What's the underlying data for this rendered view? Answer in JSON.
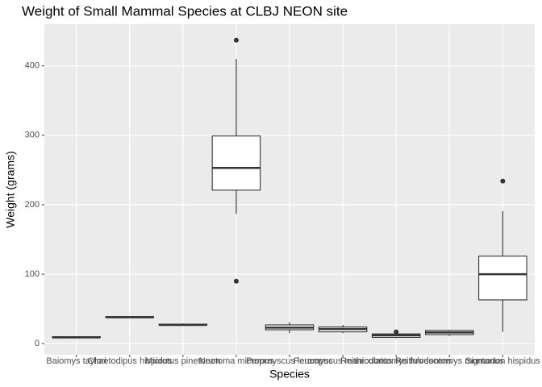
{
  "chart_data": {
    "type": "box",
    "title": "Weight of Small Mammal Species at CLBJ NEON site",
    "x_label": "Species",
    "y_label": "Weight (grams)",
    "categories": [
      "Baiomys taylori",
      "Chaetodipus hispidus",
      "Microtus pinetorum",
      "Neotoma micropus",
      "Peromyscus leucopus",
      "Peromyscus maniculatus",
      "Reithrodontomys fulvescens",
      "Reithrodontomys montanus",
      "Sigmodon hispidus"
    ],
    "boxes": [
      {
        "min": 8,
        "q1": 9,
        "median": 9,
        "q3": 10,
        "max": 10,
        "outliers": []
      },
      {
        "min": 37,
        "q1": 38,
        "median": 38,
        "q3": 39,
        "max": 39,
        "outliers": []
      },
      {
        "min": 26,
        "q1": 27,
        "median": 27,
        "q3": 28,
        "max": 29,
        "outliers": []
      },
      {
        "min": 187,
        "q1": 221,
        "median": 253,
        "q3": 299,
        "max": 410,
        "outliers": [
          437,
          90
        ]
      },
      {
        "min": 15,
        "q1": 20,
        "median": 23,
        "q3": 27,
        "max": 31,
        "outliers": []
      },
      {
        "min": 15,
        "q1": 17,
        "median": 21,
        "q3": 24,
        "max": 27,
        "outliers": []
      },
      {
        "min": 8,
        "q1": 9,
        "median": 12,
        "q3": 14,
        "max": 14,
        "outliers": [
          17
        ]
      },
      {
        "min": 11,
        "q1": 13,
        "median": 16,
        "q3": 19,
        "max": 20,
        "outliers": []
      },
      {
        "min": 17,
        "q1": 63,
        "median": 100,
        "q3": 126,
        "max": 191,
        "outliers": [
          234
        ]
      }
    ],
    "ylim": [
      -16,
      460
    ],
    "yticks": [
      0,
      100,
      200,
      300,
      400
    ],
    "grid": true
  }
}
